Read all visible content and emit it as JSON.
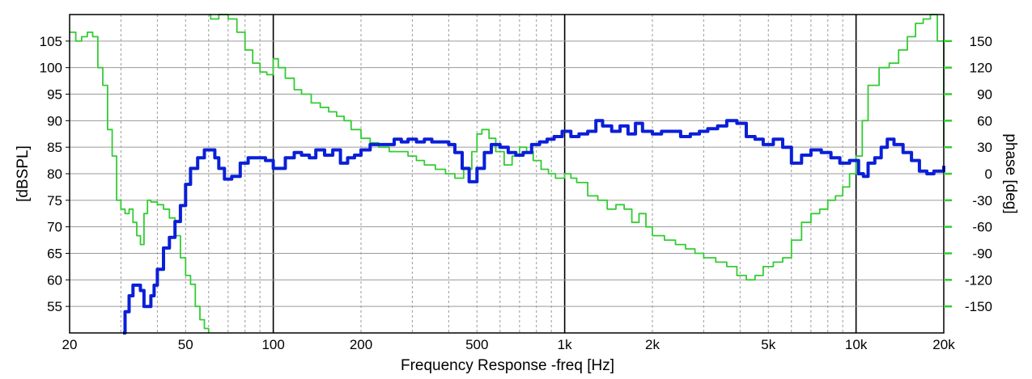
{
  "chart_data": {
    "type": "line",
    "xlabel": "Frequency Response -freq [Hz]",
    "ylabel": "[dBSPL]",
    "y2label": "phase [deg]",
    "x_scale": "log",
    "xlim": [
      20,
      20000
    ],
    "ylim": [
      50,
      110
    ],
    "y2lim": [
      -180,
      180
    ],
    "x_ticks": [
      {
        "value": 20,
        "label": "20"
      },
      {
        "value": 50,
        "label": "50"
      },
      {
        "value": 100,
        "label": "100"
      },
      {
        "value": 200,
        "label": "200"
      },
      {
        "value": 500,
        "label": "500"
      },
      {
        "value": 1000,
        "label": "1k"
      },
      {
        "value": 2000,
        "label": "2k"
      },
      {
        "value": 5000,
        "label": "5k"
      },
      {
        "value": 10000,
        "label": "10k"
      },
      {
        "value": 20000,
        "label": "20k"
      }
    ],
    "y_ticks": [
      55,
      60,
      65,
      70,
      75,
      80,
      85,
      90,
      95,
      100,
      105
    ],
    "y2_ticks": [
      -150,
      -120,
      -90,
      -60,
      -30,
      0,
      30,
      60,
      90,
      120,
      150
    ],
    "grid": true,
    "colors": {
      "spl": "#0a1fd8",
      "phase": "#33cc33",
      "grid_major": "#000000",
      "grid_minor": "#9a9a9a",
      "grid_h": "#9a9a9a"
    },
    "series": [
      {
        "axis": "left",
        "x": [
          30.5,
          31,
          32,
          33,
          34,
          35,
          36,
          37,
          38,
          39,
          40,
          42,
          44,
          46,
          48,
          50,
          52,
          55,
          58,
          61,
          63,
          65,
          68,
          72,
          77,
          82,
          88,
          94,
          100,
          105,
          110,
          118,
          125,
          133,
          140,
          150,
          160,
          170,
          180,
          190,
          200,
          215,
          230,
          245,
          260,
          275,
          290,
          310,
          330,
          350,
          375,
          400,
          420,
          445,
          470,
          500,
          530,
          560,
          600,
          640,
          680,
          720,
          770,
          820,
          870,
          920,
          980,
          1050,
          1120,
          1200,
          1280,
          1350,
          1450,
          1550,
          1650,
          1750,
          1850,
          2000,
          2150,
          2300,
          2500,
          2700,
          2900,
          3100,
          3350,
          3600,
          3900,
          4200,
          4500,
          4800,
          5200,
          5600,
          6000,
          6500,
          7000,
          7600,
          8200,
          8800,
          9500,
          10200,
          10600,
          11000,
          11600,
          12200,
          12800,
          13500,
          14500,
          15500,
          16500,
          17500,
          18500,
          19500,
          20000
        ],
        "values": [
          50,
          54,
          57,
          59,
          59,
          58,
          55,
          55,
          57,
          59,
          62,
          66,
          68,
          71,
          74,
          78,
          81,
          83,
          84.5,
          84.5,
          83,
          81,
          79,
          79.5,
          82,
          83,
          83,
          82.5,
          81,
          81,
          83,
          84,
          83.5,
          83,
          84.5,
          83.5,
          84.5,
          82,
          83,
          83.5,
          84.5,
          85.5,
          85.5,
          85.5,
          86.5,
          86,
          86.5,
          86,
          86.5,
          86,
          86,
          85.5,
          84,
          81,
          78.5,
          81,
          84,
          85.5,
          85,
          84,
          83.5,
          84,
          85.5,
          86,
          86.5,
          87,
          88,
          87,
          87.5,
          88,
          90,
          89,
          88,
          89,
          87.5,
          89.5,
          88,
          87.5,
          88,
          88,
          87,
          87.5,
          88,
          88.5,
          89,
          90,
          89.5,
          87,
          86.5,
          85.5,
          86.5,
          85,
          82,
          83.5,
          84.5,
          84,
          83,
          82,
          82.5,
          80,
          79.5,
          82,
          83,
          85,
          86.5,
          85.5,
          84,
          82.5,
          80.5,
          80,
          80.5,
          80.5,
          81.5
        ]
      },
      {
        "axis": "right",
        "x": [
          20,
          21,
          22,
          23,
          24,
          25,
          26,
          27,
          28,
          29,
          30,
          31,
          32,
          33,
          34,
          35,
          36,
          37,
          38,
          40,
          42,
          44,
          46,
          48,
          50,
          52,
          54,
          56,
          58,
          60,
          60.3,
          61,
          65,
          70,
          75,
          80,
          85,
          90,
          95,
          100,
          104,
          110,
          118,
          125,
          135,
          145,
          155,
          165,
          175,
          185,
          200,
          215,
          230,
          250,
          270,
          290,
          310,
          330,
          360,
          390,
          420,
          450,
          480,
          500,
          520,
          550,
          580,
          620,
          660,
          700,
          740,
          780,
          830,
          880,
          930,
          1000,
          1050,
          1100,
          1200,
          1300,
          1400,
          1500,
          1600,
          1700,
          1800,
          1900,
          2000,
          2200,
          2400,
          2600,
          2800,
          3000,
          3300,
          3600,
          3900,
          4200,
          4500,
          4800,
          5200,
          5600,
          6000,
          6500,
          7000,
          7500,
          8000,
          8500,
          9000,
          9500,
          10000,
          10500,
          11000,
          12000,
          13000,
          14000,
          15000,
          16000,
          17000,
          18000,
          19000,
          20000
        ],
        "values": [
          160,
          150,
          155,
          160,
          155,
          120,
          100,
          50,
          20,
          -30,
          -40,
          -45,
          -40,
          -55,
          -70,
          -80,
          -45,
          -30,
          -32,
          -35,
          -40,
          -50,
          -70,
          -95,
          -115,
          -125,
          -150,
          -165,
          -175,
          -180,
          180,
          175,
          180,
          175,
          160,
          140,
          125,
          115,
          112,
          130,
          120,
          108,
          95,
          90,
          80,
          75,
          70,
          65,
          60,
          50,
          40,
          35,
          30,
          25,
          25,
          20,
          15,
          10,
          5,
          0,
          -5,
          5,
          25,
          45,
          50,
          40,
          25,
          10,
          20,
          30,
          25,
          15,
          5,
          0,
          -5,
          0,
          -5,
          -10,
          -25,
          -30,
          -40,
          -35,
          -40,
          -55,
          -45,
          -60,
          -70,
          -75,
          -80,
          -85,
          -90,
          -95,
          -100,
          -105,
          -115,
          -120,
          -115,
          -105,
          -100,
          -95,
          -75,
          -55,
          -45,
          -40,
          -30,
          -25,
          -15,
          0,
          20,
          60,
          100,
          120,
          125,
          140,
          155,
          170,
          175,
          180,
          150,
          30
        ]
      }
    ]
  }
}
